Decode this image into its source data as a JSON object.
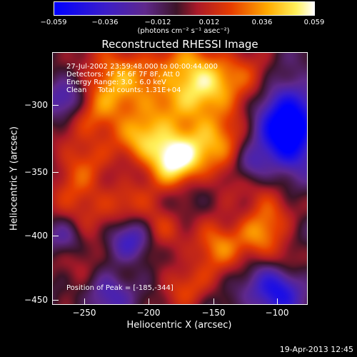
{
  "colorbar": {
    "tick_labels": [
      "−0.059",
      "−0.036",
      "−0.012",
      "0.012",
      "0.036",
      "0.059"
    ],
    "units_label": "(photons cm⁻² s⁻¹ asec⁻²)",
    "range": [
      -0.059,
      0.059
    ]
  },
  "title": "Reconstructed RHESSI Image",
  "info": {
    "time_range": "27-Jul-2002 23:59:48.000 to 00:00:44.000",
    "detectors": "Detectors: 4F 5F 6F 7F 8F, Att 0",
    "energy_range": "Energy Range: 3.0 - 6.0 keV",
    "method": "Clean     Total counts: 1.31E+04",
    "peak": "Position of Peak = [-185,-344]"
  },
  "axes": {
    "xlabel": "Heliocentric X (arcsec)",
    "ylabel": "Heliocentric Y (arcsec)",
    "xticks": [
      "−250",
      "−200",
      "−150",
      "−100"
    ],
    "yticks": [
      "−300",
      "−350",
      "−400",
      "−450"
    ],
    "xlim": [
      -275,
      -82
    ],
    "ylim": [
      -455,
      -264
    ]
  },
  "footer": {
    "timestamp": "19-Apr-2013 12:45"
  },
  "chart_data": {
    "type": "heatmap",
    "title": "Reconstructed RHESSI Image",
    "xlabel": "Heliocentric X (arcsec)",
    "ylabel": "Heliocentric Y (arcsec)",
    "xlim": [
      -275,
      -82
    ],
    "ylim": [
      -455,
      -264
    ],
    "zlim": [
      -0.059,
      0.059
    ],
    "peak": [
      -185,
      -344
    ]
  }
}
